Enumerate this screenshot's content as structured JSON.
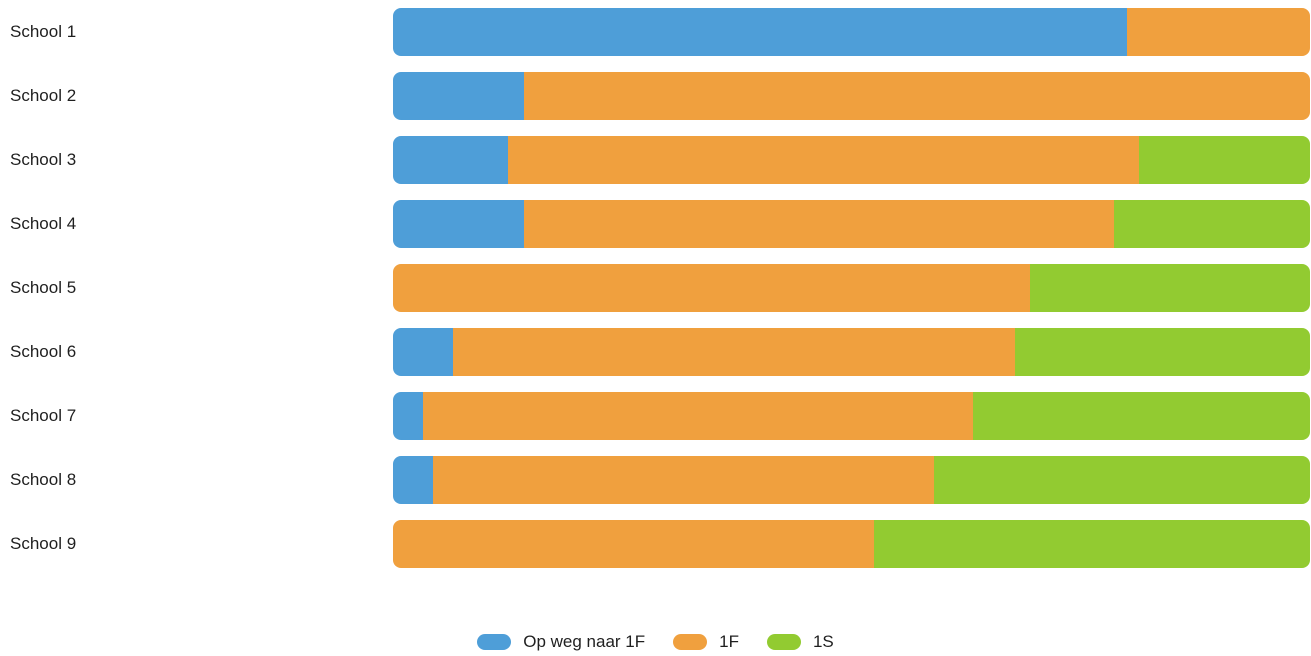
{
  "chart_data": {
    "type": "bar",
    "orientation": "horizontal",
    "stacked": "percent",
    "categories": [
      "School 1",
      "School 2",
      "School 3",
      "School 4",
      "School 5",
      "School 6",
      "School 7",
      "School 8",
      "School 9"
    ],
    "series": [
      {
        "name": "Op weg naar 1F",
        "color": "#4e9ed8",
        "values": [
          80,
          14.3,
          12.5,
          14.3,
          0,
          6.5,
          3.3,
          4.4,
          0
        ]
      },
      {
        "name": "1F",
        "color": "#f0a03e",
        "values": [
          20,
          85.7,
          68.8,
          64.3,
          69.5,
          61.3,
          60.0,
          54.6,
          52.4
        ]
      },
      {
        "name": "1S",
        "color": "#92cb31",
        "values": [
          0,
          0,
          18.7,
          21.4,
          30.5,
          32.2,
          36.7,
          41.0,
          47.6
        ]
      }
    ],
    "xlim": [
      0,
      100
    ],
    "legend_position": "bottom-center",
    "grid": false
  }
}
